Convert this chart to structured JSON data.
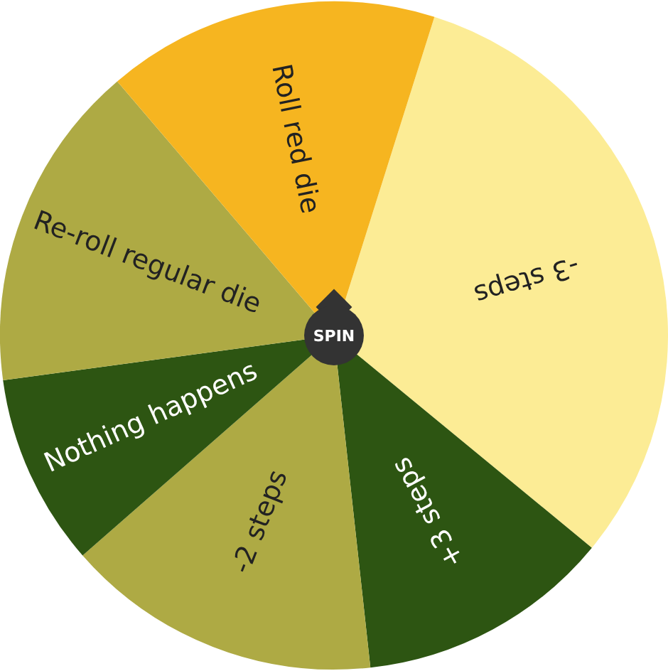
{
  "chart_data": {
    "type": "pie",
    "categories": [
      "-3 steps",
      "+3 steps",
      "-2 steps",
      "Nothing happens",
      "Re-roll regular die",
      "Roll red die"
    ],
    "values": [
      31.1,
      12.3,
      15.3,
      9.3,
      15.9,
      16.1
    ],
    "colors": [
      "#fcec95",
      "#2d5512",
      "#aeaa44",
      "#2d5512",
      "#aeaa44",
      "#f6b520"
    ],
    "legend": false,
    "annotations": [
      "SPIN"
    ]
  }
}
